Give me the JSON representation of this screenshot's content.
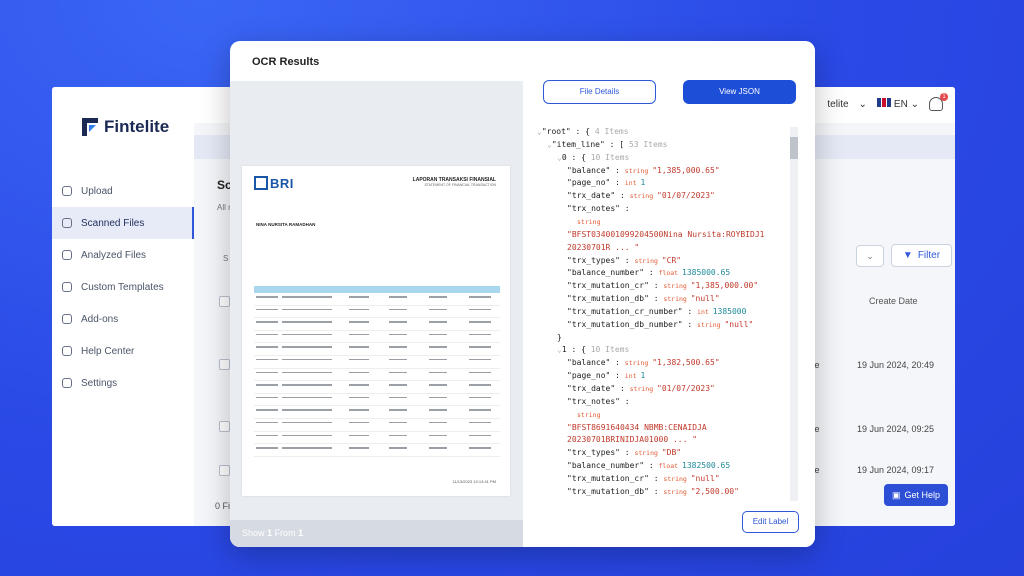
{
  "app": {
    "brand": "Fintelite",
    "account_fragment": "telite",
    "lang": "EN",
    "notif_count": "1",
    "nav": [
      {
        "label": "Upload",
        "icon": "upload-icon"
      },
      {
        "label": "Scanned Files",
        "icon": "file-icon",
        "active": true
      },
      {
        "label": "Analyzed Files",
        "icon": "chart-icon"
      },
      {
        "label": "Custom Templates",
        "icon": "template-icon"
      },
      {
        "label": "Add-ons",
        "icon": "addon-icon"
      },
      {
        "label": "Help Center",
        "icon": "help-icon"
      },
      {
        "label": "Settings",
        "icon": "settings-icon"
      }
    ],
    "fragments": {
      "sc": "Sc",
      "all": "All r",
      "s": "S",
      "zero": "0 Fi"
    },
    "filter_label": "Filter",
    "create_date_header": "Create Date",
    "rows": [
      {
        "name": "elite",
        "date": "19 Jun 2024, 20:49"
      },
      {
        "name": "elite",
        "date": "19 Jun 2024, 09:25"
      },
      {
        "name": "elite",
        "date": "19 Jun 2024, 09:17"
      }
    ],
    "get_help": "Get Help"
  },
  "modal": {
    "title": "OCR Results",
    "file_details": "File Details",
    "view_json": "View JSON",
    "edit_label": "Edit Label",
    "footer_show": "Show",
    "footer_n": "1",
    "footer_from": "From",
    "footer_total": "1"
  },
  "document": {
    "bank": "BRI",
    "heading": "LAPORAN TRANSAKSI FINANSIAL",
    "sub_heading": "STATEMENT OF FINANCIAL TRANSACTION",
    "name": "NINA NURSITA RAMADHAN",
    "footer": "11/13/2023 13:13:41 PM"
  },
  "json_lines": [
    {
      "indent": 0,
      "parts": [
        [
          "c",
          "⌄"
        ],
        [
          "k",
          "\"root\" : { "
        ],
        [
          "c",
          "4 Items"
        ]
      ]
    },
    {
      "indent": 1,
      "parts": [
        [
          "c",
          "⌄"
        ],
        [
          "k",
          "\"item_line\" : [ "
        ],
        [
          "c",
          "53 Items"
        ]
      ]
    },
    {
      "indent": 2,
      "parts": [
        [
          "c",
          "⌄"
        ],
        [
          "k",
          "0 : { "
        ],
        [
          "c",
          "10 Items"
        ]
      ]
    },
    {
      "indent": 3,
      "parts": [
        [
          "k",
          "\"balance\" : "
        ],
        [
          "t",
          "string "
        ],
        [
          "s",
          "\"1,385,000.65\""
        ]
      ]
    },
    {
      "indent": 3,
      "parts": [
        [
          "k",
          "\"page_no\" : "
        ],
        [
          "t",
          "int "
        ],
        [
          "n",
          "1"
        ]
      ]
    },
    {
      "indent": 3,
      "parts": [
        [
          "k",
          "\"trx_date\" : "
        ],
        [
          "t",
          "string "
        ],
        [
          "s",
          "\"01/07/2023\""
        ]
      ]
    },
    {
      "indent": 3,
      "parts": [
        [
          "k",
          "\"trx_notes\" :"
        ]
      ]
    },
    {
      "indent": 4,
      "parts": [
        [
          "t",
          "string"
        ]
      ]
    },
    {
      "indent": 3,
      "parts": [
        [
          "s",
          "\"BFST034001099204500Nina Nursita:ROYBIDJ1"
        ]
      ]
    },
    {
      "indent": 3,
      "parts": [
        [
          "s",
          "20230701R ... \""
        ]
      ]
    },
    {
      "indent": 3,
      "parts": [
        [
          "k",
          "\"trx_types\" : "
        ],
        [
          "t",
          "string "
        ],
        [
          "s",
          "\"CR\""
        ]
      ]
    },
    {
      "indent": 3,
      "parts": [
        [
          "k",
          "\"balance_number\" : "
        ],
        [
          "t",
          "float "
        ],
        [
          "n",
          "1385000.65"
        ]
      ]
    },
    {
      "indent": 3,
      "parts": [
        [
          "k",
          "\"trx_mutation_cr\" : "
        ],
        [
          "t",
          "string "
        ],
        [
          "s",
          "\"1,385,000.00\""
        ]
      ]
    },
    {
      "indent": 3,
      "parts": [
        [
          "k",
          "\"trx_mutation_db\" : "
        ],
        [
          "t",
          "string "
        ],
        [
          "s",
          "\"null\""
        ]
      ]
    },
    {
      "indent": 3,
      "parts": [
        [
          "k",
          "\"trx_mutation_cr_number\" : "
        ],
        [
          "t",
          "int "
        ],
        [
          "n",
          "1385000"
        ]
      ]
    },
    {
      "indent": 3,
      "parts": [
        [
          "k",
          "\"trx_mutation_db_number\" : "
        ],
        [
          "t",
          "string "
        ],
        [
          "s",
          "\"null\""
        ]
      ]
    },
    {
      "indent": 2,
      "parts": [
        [
          "k",
          "}"
        ]
      ]
    },
    {
      "indent": 2,
      "parts": [
        [
          "c",
          "⌄"
        ],
        [
          "k",
          "1 : { "
        ],
        [
          "c",
          "10 Items"
        ]
      ]
    },
    {
      "indent": 3,
      "parts": [
        [
          "k",
          "\"balance\" : "
        ],
        [
          "t",
          "string "
        ],
        [
          "s",
          "\"1,382,500.65\""
        ]
      ]
    },
    {
      "indent": 3,
      "parts": [
        [
          "k",
          "\"page_no\" : "
        ],
        [
          "t",
          "int "
        ],
        [
          "n",
          "1"
        ]
      ]
    },
    {
      "indent": 3,
      "parts": [
        [
          "k",
          "\"trx_date\" : "
        ],
        [
          "t",
          "string "
        ],
        [
          "s",
          "\"01/07/2023\""
        ]
      ]
    },
    {
      "indent": 3,
      "parts": [
        [
          "k",
          "\"trx_notes\" :"
        ]
      ]
    },
    {
      "indent": 4,
      "parts": [
        [
          "t",
          "string"
        ]
      ]
    },
    {
      "indent": 3,
      "parts": [
        [
          "s",
          "\"BFST8691640434 NBMB:CENAIDJA"
        ]
      ]
    },
    {
      "indent": 3,
      "parts": [
        [
          "s",
          "20230701BRINIDJA01000 ... \""
        ]
      ]
    },
    {
      "indent": 3,
      "parts": [
        [
          "k",
          "\"trx_types\" : "
        ],
        [
          "t",
          "string "
        ],
        [
          "s",
          "\"DB\""
        ]
      ]
    },
    {
      "indent": 3,
      "parts": [
        [
          "k",
          "\"balance_number\" : "
        ],
        [
          "t",
          "float "
        ],
        [
          "n",
          "1382500.65"
        ]
      ]
    },
    {
      "indent": 3,
      "parts": [
        [
          "k",
          "\"trx_mutation_cr\" : "
        ],
        [
          "t",
          "string "
        ],
        [
          "s",
          "\"null\""
        ]
      ]
    },
    {
      "indent": 3,
      "parts": [
        [
          "k",
          "\"trx_mutation_db\" : "
        ],
        [
          "t",
          "string "
        ],
        [
          "s",
          "\"2,500.00\""
        ]
      ]
    }
  ],
  "colors": {
    "accent": "#1d4ed8",
    "background": "#2f4fe8"
  }
}
